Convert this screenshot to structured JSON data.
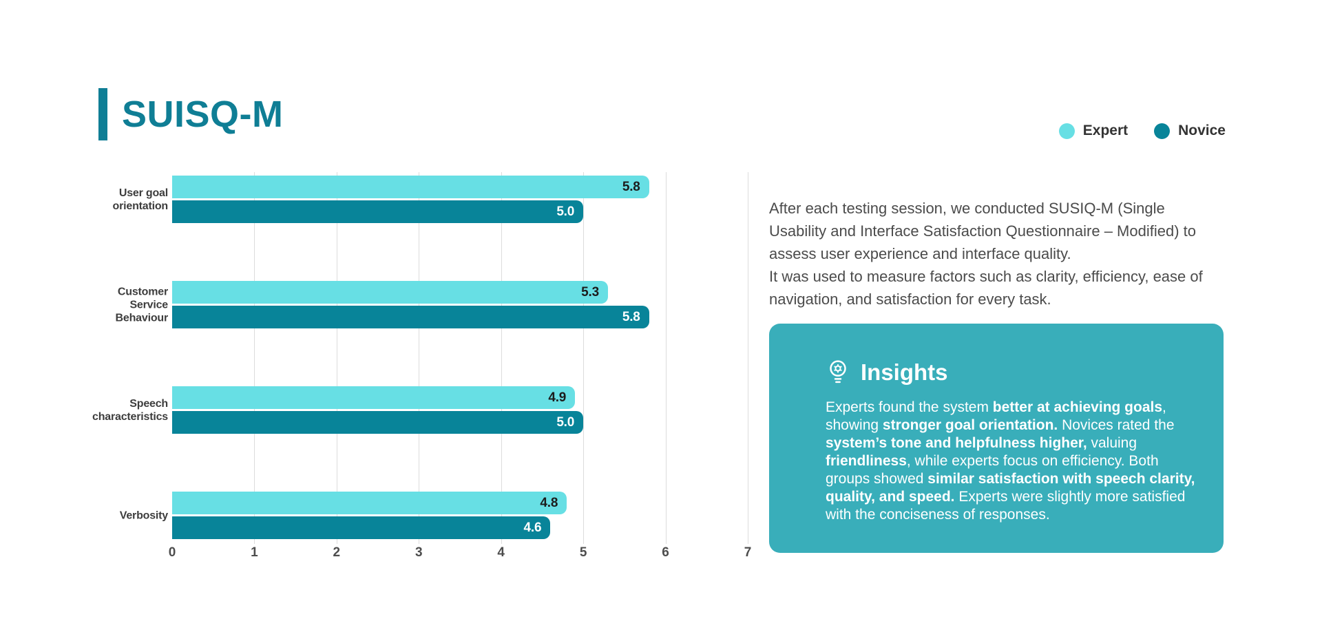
{
  "page": {
    "title": "SUISQ-M",
    "title_color": "#0F7E95",
    "accent_color": "#0F7E95"
  },
  "legend": {
    "position": "top-right"
  },
  "chart_data": {
    "type": "bar",
    "orientation": "horizontal",
    "title": "SUISQ-M",
    "categories": [
      "User goal\norientation",
      "Customer\nService\nBehaviour",
      "Speech\ncharacteristics",
      "Verbosity"
    ],
    "series": [
      {
        "name": "Expert",
        "color": "#67DFE4",
        "label_color": "#1c1c1c",
        "values": [
          5.8,
          5.3,
          4.9,
          4.8
        ]
      },
      {
        "name": "Novice",
        "color": "#088499",
        "label_color": "#ffffff",
        "values": [
          5.0,
          5.8,
          5.0,
          4.6
        ]
      }
    ],
    "xlim": [
      0,
      7
    ],
    "xticks": [
      0,
      1,
      2,
      3,
      4,
      5,
      6,
      7
    ],
    "grid": true,
    "gridline_color": "#dcdcdc",
    "value_labels": true,
    "legend_position": "top-right"
  },
  "description": {
    "para1": "After each testing session, we conducted SUSIQ-M (Single Usability and Interface Satisfaction Questionnaire – Modified) to assess user experience and interface quality.",
    "para2": "It was used to measure factors such as clarity, efficiency, ease of navigation, and satisfaction for every task."
  },
  "insights": {
    "title": "Insights",
    "icon": "lightbulb-gear-icon",
    "bg_color": "#39AEBA",
    "body": [
      {
        "t": "Experts found the system ",
        "b": false
      },
      {
        "t": "better at achieving goals",
        "b": true
      },
      {
        "t": ", showing ",
        "b": false
      },
      {
        "t": "stronger goal orientation.",
        "b": true
      },
      {
        "t": " Novices rated the ",
        "b": false
      },
      {
        "t": "system’s tone and helpfulness higher,",
        "b": true
      },
      {
        "t": " valuing ",
        "b": false
      },
      {
        "t": "friendliness",
        "b": true
      },
      {
        "t": ", while experts focus on efficiency. Both groups showed ",
        "b": false
      },
      {
        "t": "similar satisfaction with speech clarity, quality, and speed.",
        "b": true
      },
      {
        "t": " Experts were slightly more satisfied with the conciseness of responses.",
        "b": false
      }
    ]
  }
}
